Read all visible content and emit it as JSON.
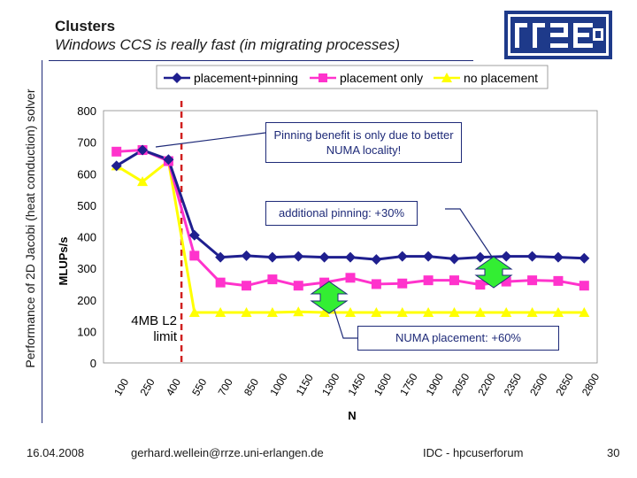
{
  "slide": {
    "title": "Clusters",
    "subtitle": "Windows CCS is really fast (in migrating processes)",
    "side_label": "Performance of 2D Jacobi (heat conduction) solver"
  },
  "annotations": {
    "pinning": "Pinning benefit is only due to better NUMA locality!",
    "additional": "additional pinning: +30%",
    "numa": "NUMA placement: +60%",
    "l2_limit_line1": "4MB L2",
    "l2_limit_line2": "limit"
  },
  "footer": {
    "date": "16.04.2008",
    "email": "gerhard.wellein@rrze.uni-erlangen.de",
    "event": "IDC - hpcuserforum",
    "page": "30"
  },
  "colors": {
    "placement_pinning": "#1f1f8f",
    "placement_only": "#ff33cc",
    "no_placement": "#ffff00",
    "limit_line": "#d0201f",
    "arrow_green": "#33ee33",
    "logo_blue": "#1e3a8a"
  },
  "chart_data": {
    "type": "line",
    "title": "",
    "xlabel": "N",
    "ylabel": "MLUPs/s",
    "ylim": [
      0,
      800
    ],
    "yticks": [
      0,
      100,
      200,
      300,
      400,
      500,
      600,
      700,
      800
    ],
    "categories": [
      100,
      250,
      400,
      550,
      700,
      850,
      1000,
      1150,
      1300,
      1450,
      1600,
      1750,
      1900,
      2050,
      2200,
      2350,
      2500,
      2650,
      2800
    ],
    "legend_position": "top",
    "grid": false,
    "series": [
      {
        "name": "placement+pinning",
        "marker": "diamond",
        "values": [
          625,
          675,
          645,
          405,
          335,
          340,
          335,
          338,
          335,
          335,
          328,
          338,
          338,
          330,
          335,
          338,
          338,
          335,
          332
        ]
      },
      {
        "name": "placement only",
        "marker": "square",
        "values": [
          670,
          675,
          640,
          340,
          255,
          245,
          265,
          245,
          255,
          270,
          250,
          252,
          262,
          262,
          248,
          258,
          262,
          260,
          245
        ]
      },
      {
        "name": "no placement",
        "marker": "triangle",
        "values": [
          625,
          575,
          640,
          160,
          160,
          160,
          160,
          162,
          160,
          160,
          160,
          160,
          160,
          160,
          160,
          160,
          160,
          160,
          160
        ]
      }
    ],
    "l2_limit_between": [
      400,
      550
    ]
  }
}
